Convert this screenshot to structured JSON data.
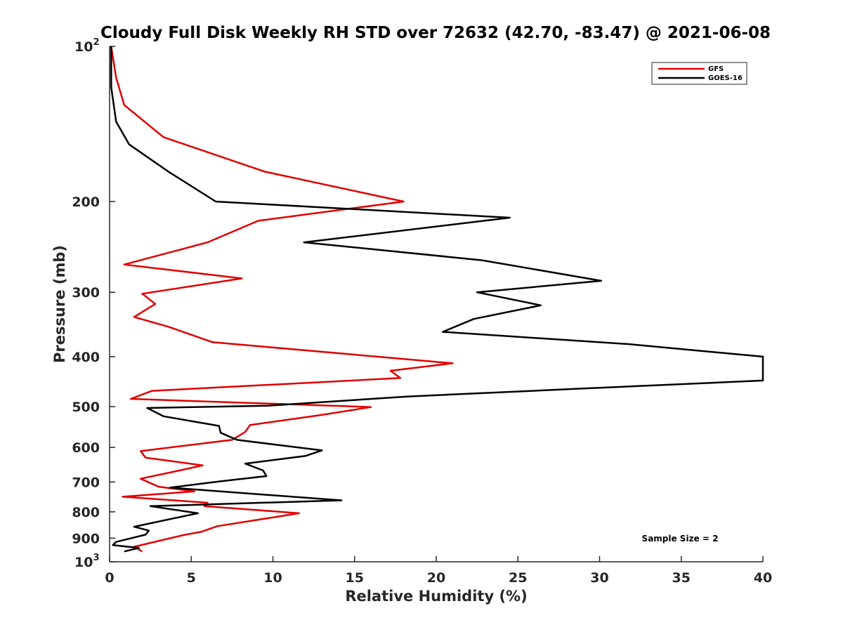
{
  "chart_data": {
    "type": "line",
    "title": "Cloudy Full Disk Weekly RH STD over 72632 (42.70, -83.47) @ 2021-06-08",
    "xlabel": "Relative Humidity (%)",
    "ylabel": "Pressure (mb)",
    "xlim": [
      0,
      40
    ],
    "ylim": [
      100,
      1000
    ],
    "yscale": "log",
    "y_reversed": true,
    "x_ticks": [
      {
        "value": 0,
        "label": "0"
      },
      {
        "value": 5,
        "label": "5"
      },
      {
        "value": 10,
        "label": "10"
      },
      {
        "value": 15,
        "label": "15"
      },
      {
        "value": 20,
        "label": "20"
      },
      {
        "value": 25,
        "label": "25"
      },
      {
        "value": 30,
        "label": "30"
      },
      {
        "value": 35,
        "label": "35"
      },
      {
        "value": 40,
        "label": "40"
      }
    ],
    "y_ticks": [
      {
        "value": 100,
        "base": "10",
        "exp": "2"
      },
      {
        "value": 200,
        "base": "200",
        "exp": ""
      },
      {
        "value": 300,
        "base": "300",
        "exp": ""
      },
      {
        "value": 400,
        "base": "400",
        "exp": ""
      },
      {
        "value": 500,
        "base": "500",
        "exp": ""
      },
      {
        "value": 600,
        "base": "600",
        "exp": ""
      },
      {
        "value": 700,
        "base": "700",
        "exp": ""
      },
      {
        "value": 800,
        "base": "800",
        "exp": ""
      },
      {
        "value": 900,
        "base": "900",
        "exp": ""
      },
      {
        "value": 1000,
        "base": "10",
        "exp": "3"
      }
    ],
    "legend_position": "top-right",
    "annotation": "Sample Size = 2",
    "series": [
      {
        "name": "GFS",
        "color": "#e00000",
        "points": [
          [
            0.1,
            100
          ],
          [
            0.4,
            115
          ],
          [
            0.9,
            130
          ],
          [
            3.3,
            150
          ],
          [
            9.5,
            175
          ],
          [
            18.0,
            200
          ],
          [
            9.1,
            218
          ],
          [
            6.0,
            240
          ],
          [
            0.9,
            265
          ],
          [
            8.1,
            282
          ],
          [
            2.0,
            302
          ],
          [
            2.8,
            316
          ],
          [
            1.5,
            335
          ],
          [
            3.6,
            350
          ],
          [
            6.3,
            375
          ],
          [
            21.0,
            412
          ],
          [
            17.2,
            426
          ],
          [
            17.8,
            440
          ],
          [
            2.6,
            466
          ],
          [
            1.3,
            483
          ],
          [
            16.0,
            501
          ],
          [
            12.8,
            520
          ],
          [
            8.6,
            543
          ],
          [
            8.3,
            560
          ],
          [
            7.5,
            580
          ],
          [
            1.9,
            610
          ],
          [
            2.2,
            628
          ],
          [
            5.7,
            650
          ],
          [
            4.0,
            668
          ],
          [
            1.9,
            690
          ],
          [
            3.0,
            715
          ],
          [
            5.2,
            730
          ],
          [
            0.8,
            748
          ],
          [
            6.0,
            768
          ],
          [
            5.8,
            780
          ],
          [
            11.6,
            805
          ],
          [
            6.6,
            853
          ],
          [
            5.6,
            875
          ],
          [
            4.5,
            888
          ],
          [
            1.5,
            935
          ],
          [
            2.0,
            955
          ]
        ]
      },
      {
        "name": "GOES-16",
        "color": "#000000",
        "points": [
          [
            0.1,
            100
          ],
          [
            0.1,
            120
          ],
          [
            0.4,
            140
          ],
          [
            1.2,
            155
          ],
          [
            3.6,
            175
          ],
          [
            6.5,
            200
          ],
          [
            24.5,
            215
          ],
          [
            11.9,
            240
          ],
          [
            22.8,
            260
          ],
          [
            30.1,
            285
          ],
          [
            22.5,
            300
          ],
          [
            26.4,
            318
          ],
          [
            22.3,
            338
          ],
          [
            20.4,
            358
          ],
          [
            31.7,
            378
          ],
          [
            40.0,
            400
          ],
          [
            40.0,
            445
          ],
          [
            28.5,
            462
          ],
          [
            18.2,
            478
          ],
          [
            9.7,
            498
          ],
          [
            2.3,
            503
          ],
          [
            3.3,
            522
          ],
          [
            6.7,
            545
          ],
          [
            6.8,
            562
          ],
          [
            7.8,
            580
          ],
          [
            13.0,
            608
          ],
          [
            12.0,
            623
          ],
          [
            8.3,
            645
          ],
          [
            9.4,
            665
          ],
          [
            9.6,
            682
          ],
          [
            6.8,
            698
          ],
          [
            3.7,
            718
          ],
          [
            8.0,
            735
          ],
          [
            14.2,
            760
          ],
          [
            2.5,
            780
          ],
          [
            5.4,
            805
          ],
          [
            1.5,
            855
          ],
          [
            2.4,
            870
          ],
          [
            2.2,
            886
          ],
          [
            0.4,
            915
          ],
          [
            0.2,
            928
          ],
          [
            1.8,
            940
          ],
          [
            0.9,
            955
          ]
        ]
      }
    ]
  }
}
